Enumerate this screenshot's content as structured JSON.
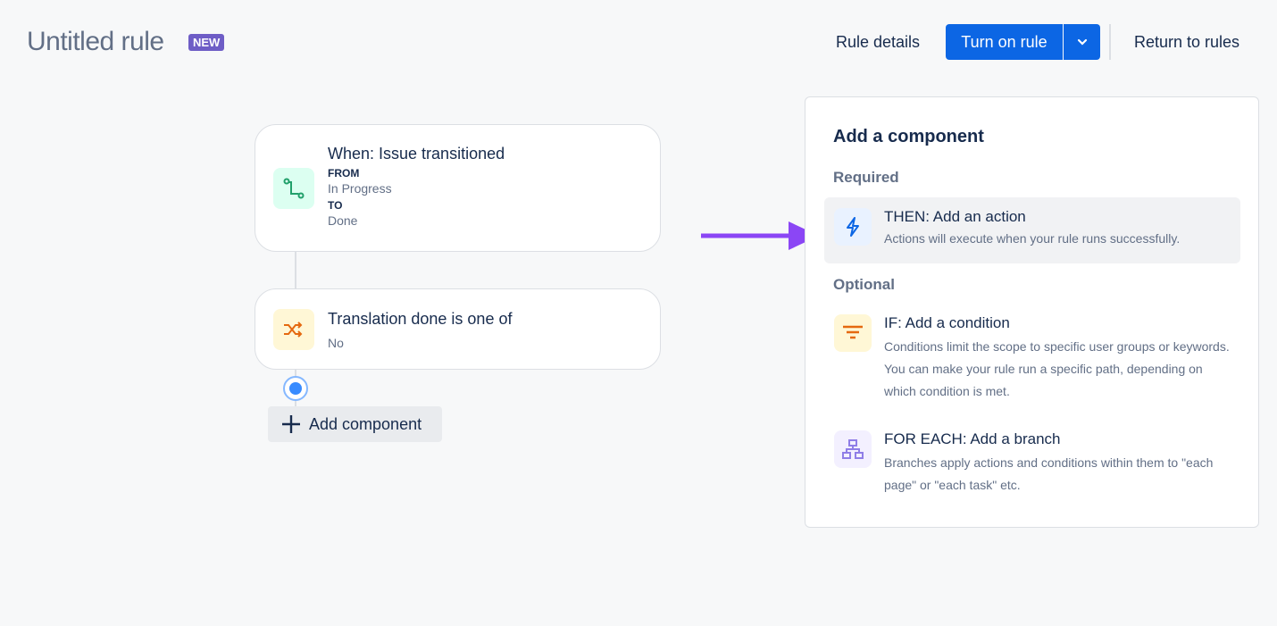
{
  "header": {
    "title": "Untitled rule",
    "badge": "NEW",
    "rule_details": "Rule details",
    "turn_on": "Turn on rule",
    "return": "Return to rules"
  },
  "flow": {
    "trigger": {
      "title": "When: Issue transitioned",
      "from_label": "FROM",
      "from_value": "In Progress",
      "to_label": "TO",
      "to_value": "Done",
      "icon": "transition-icon"
    },
    "condition": {
      "title": "Translation done is one of",
      "value": "No",
      "icon": "shuffle-icon"
    },
    "add_component": "Add component"
  },
  "panel": {
    "title": "Add a component",
    "required": "Required",
    "optional": "Optional",
    "items": [
      {
        "title": "THEN: Add an action",
        "desc": "Actions will execute when your rule runs successfully.",
        "icon": "lightning-icon",
        "color": "#0c66e4"
      },
      {
        "title": "IF: Add a condition",
        "desc": "Conditions limit the scope to specific user groups or keywords. You can make your rule run a specific path, depending on which condition is met.",
        "icon": "filter-icon",
        "color": "#e56910"
      },
      {
        "title": "FOR EACH: Add a branch",
        "desc": "Branches apply actions and conditions within them to \"each page\" or \"each task\" etc.",
        "icon": "branch-icon",
        "color": "#8f7ee7"
      }
    ]
  },
  "annotation": {
    "arrow_color": "#8b46f5"
  }
}
